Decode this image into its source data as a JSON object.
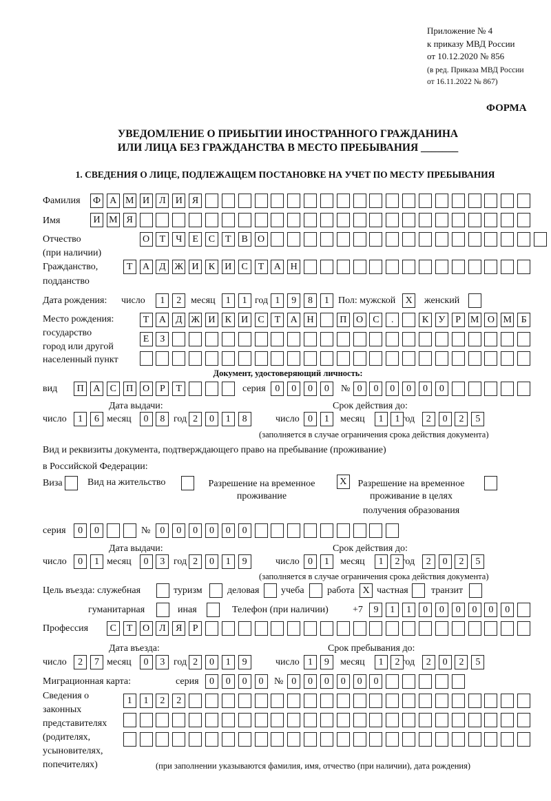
{
  "header": {
    "appendix": "Приложение № 4",
    "order": "к приказу МВД России",
    "date": "от 10.12.2020 № 856",
    "edition1": "(в ред. Приказа МВД России",
    "edition2": "от 16.11.2022 № 867)",
    "form_label": "ФОРМА"
  },
  "title": {
    "line1": "УВЕДОМЛЕНИЕ О ПРИБЫТИИ ИНОСТРАННОГО ГРАЖДАНИНА",
    "line2": "ИЛИ ЛИЦА БЕЗ ГРАЖДАНСТВА В МЕСТО ПРЕБЫВАНИЯ _______"
  },
  "section1": "1. СВЕДЕНИЯ О ЛИЦЕ, ПОДЛЕЖАЩЕМ ПОСТАНОВКЕ НА УЧЕТ ПО МЕСТУ ПРЕБЫВАНИЯ",
  "labels": {
    "surname": "Фамилия",
    "name": "Имя",
    "patronymic1": "Отчество",
    "patronymic2": "(при наличии)",
    "citizenship1": "Гражданство,",
    "citizenship2": "подданство",
    "birth_date": "Дата рождения:",
    "day": "число",
    "month": "месяц",
    "year": "год",
    "sex": "Пол: мужской",
    "female": "женский",
    "birthplace1": "Место рождения:",
    "birthplace2": "государство",
    "birthplace3": "город или другой",
    "birthplace4": "населенный пункт",
    "id_doc": "Документ, удостоверяющий личность:",
    "kind": "вид",
    "series": "серия",
    "number": "№",
    "issue_date": "Дата выдачи:",
    "valid_until": "Срок действия до:",
    "valid_note": "(заполняется в случае ограничения срока действия документа)",
    "right_doc1": "Вид и реквизиты документа, подтверждающего право на пребывание (проживание)",
    "right_doc2": "в Российской Федерации:",
    "visa": "Виза",
    "residence_permit": "Вид на жительство",
    "temp_res1": "Разрешение на временное",
    "temp_res2": "проживание",
    "temp_edu1": "Разрешение на временное",
    "temp_edu2": "проживание в целях",
    "temp_edu3": "получения образования",
    "purpose": "Цель въезда: служебная",
    "tourism": "туризм",
    "business": "деловая",
    "study": "учеба",
    "work": "работа",
    "private": "частная",
    "transit": "транзит",
    "humanitarian": "гуманитарная",
    "other": "иная",
    "phone": "Телефон (при наличии)",
    "phone_prefix": "+7",
    "profession": "Профессия",
    "entry_date": "Дата въезда:",
    "stay_until": "Срок пребывания до:",
    "migration_card": "Миграционная карта:",
    "reps1": "Сведения о",
    "reps2": "законных",
    "reps3": "представителях",
    "reps4": "(родителях,",
    "reps5": "усыновителях,",
    "reps6": "попечителях)",
    "reps_note": "(при заполнении указываются фамилия, имя, отчество (при наличии), дата рождения)"
  },
  "fields": {
    "surname": [
      "Ф",
      "А",
      "М",
      "И",
      "Л",
      "И",
      "Я",
      "",
      "",
      "",
      "",
      "",
      "",
      "",
      "",
      "",
      "",
      "",
      "",
      "",
      "",
      "",
      "",
      "",
      "",
      "",
      ""
    ],
    "name": [
      "И",
      "М",
      "Я",
      "",
      "",
      "",
      "",
      "",
      "",
      "",
      "",
      "",
      "",
      "",
      "",
      "",
      "",
      "",
      "",
      "",
      "",
      "",
      "",
      "",
      "",
      "",
      ""
    ],
    "patronymic": [
      "О",
      "Т",
      "Ч",
      "Е",
      "С",
      "Т",
      "В",
      "О",
      "",
      "",
      "",
      "",
      "",
      "",
      "",
      "",
      "",
      "",
      "",
      "",
      "",
      "",
      "",
      "",
      ""
    ],
    "citizenship": [
      "Т",
      "А",
      "Д",
      "Ж",
      "И",
      "К",
      "И",
      "С",
      "Т",
      "А",
      "Н",
      "",
      "",
      "",
      "",
      "",
      "",
      "",
      "",
      "",
      "",
      "",
      "",
      "",
      ""
    ],
    "birth_day": [
      "1",
      "2"
    ],
    "birth_month": [
      "1",
      "1"
    ],
    "birth_year": [
      "1",
      "9",
      "8",
      "1"
    ],
    "sex_male": "X",
    "sex_female": "",
    "birthplace1": [
      "Т",
      "А",
      "Д",
      "Ж",
      "И",
      "К",
      "И",
      "С",
      "Т",
      "А",
      "Н",
      "",
      "П",
      "О",
      "С",
      ".",
      "",
      "К",
      "У",
      "Р",
      "М",
      "О",
      "М",
      "Б"
    ],
    "birthplace2": [
      "Е",
      "З",
      "",
      "",
      "",
      "",
      "",
      "",
      "",
      "",
      "",
      "",
      "",
      "",
      "",
      "",
      "",
      "",
      "",
      "",
      "",
      "",
      "",
      ""
    ],
    "birthplace3": [
      "",
      "",
      "",
      "",
      "",
      "",
      "",
      "",
      "",
      "",
      "",
      "",
      "",
      "",
      "",
      "",
      "",
      "",
      "",
      "",
      "",
      "",
      "",
      ""
    ],
    "doc_kind": [
      "П",
      "А",
      "С",
      "П",
      "О",
      "Р",
      "Т",
      "",
      "",
      ""
    ],
    "doc_series": [
      "0",
      "0",
      "0",
      "0"
    ],
    "doc_number": [
      "0",
      "0",
      "0",
      "0",
      "0",
      "0",
      "",
      "",
      "",
      "",
      ""
    ],
    "doc_issue_day": [
      "1",
      "6"
    ],
    "doc_issue_month": [
      "0",
      "8"
    ],
    "doc_issue_year": [
      "2",
      "0",
      "1",
      "8"
    ],
    "doc_valid_day": [
      "0",
      "1"
    ],
    "doc_valid_month": [
      "1",
      "1"
    ],
    "doc_valid_year": [
      "2",
      "0",
      "2",
      "5"
    ],
    "chk_visa": "",
    "chk_residence": "",
    "chk_temp_res": "X",
    "chk_temp_edu": "",
    "right_series": [
      "0",
      "0",
      "",
      ""
    ],
    "right_number": [
      "0",
      "0",
      "0",
      "0",
      "0",
      "0",
      "",
      "",
      "",
      "",
      "",
      "",
      "",
      "",
      ""
    ],
    "right_issue_day": [
      "0",
      "1"
    ],
    "right_issue_month": [
      "0",
      "3"
    ],
    "right_issue_year": [
      "2",
      "0",
      "1",
      "9"
    ],
    "right_valid_day": [
      "0",
      "1"
    ],
    "right_valid_month": [
      "1",
      "2"
    ],
    "right_valid_year": [
      "2",
      "0",
      "2",
      "5"
    ],
    "p_service": "",
    "p_tourism": "",
    "p_business": "",
    "p_study": "",
    "p_work": "X",
    "p_private": "",
    "p_transit": "",
    "p_humanitarian": "",
    "p_other": "",
    "phone": [
      "9",
      "1",
      "1",
      "0",
      "0",
      "0",
      "0",
      "0",
      "0",
      ""
    ],
    "profession": [
      "С",
      "Т",
      "О",
      "Л",
      "Я",
      "Р",
      "",
      "",
      "",
      "",
      "",
      "",
      "",
      "",
      "",
      "",
      "",
      "",
      "",
      "",
      "",
      "",
      "",
      "",
      "",
      ""
    ],
    "entry_day": [
      "2",
      "7"
    ],
    "entry_month": [
      "0",
      "3"
    ],
    "entry_year": [
      "2",
      "0",
      "1",
      "9"
    ],
    "stay_day": [
      "1",
      "9"
    ],
    "stay_month": [
      "1",
      "2"
    ],
    "stay_year": [
      "2",
      "0",
      "2",
      "5"
    ],
    "mc_series": [
      "0",
      "0",
      "0",
      "0"
    ],
    "mc_number": [
      "0",
      "0",
      "0",
      "0",
      "0",
      "0",
      "",
      "",
      "",
      "",
      ""
    ],
    "reps1": [
      "1",
      "1",
      "2",
      "2",
      "",
      "",
      "",
      "",
      "",
      "",
      "",
      "",
      "",
      "",
      "",
      "",
      "",
      "",
      "",
      "",
      "",
      "",
      "",
      "",
      ""
    ],
    "reps2": [
      "",
      "",
      "",
      "",
      "",
      "",
      "",
      "",
      "",
      "",
      "",
      "",
      "",
      "",
      "",
      "",
      "",
      "",
      "",
      "",
      "",
      "",
      "",
      "",
      ""
    ],
    "reps3": [
      "",
      "",
      "",
      "",
      "",
      "",
      "",
      "",
      "",
      "",
      "",
      "",
      "",
      "",
      "",
      "",
      "",
      "",
      "",
      "",
      "",
      "",
      "",
      "",
      ""
    ]
  }
}
